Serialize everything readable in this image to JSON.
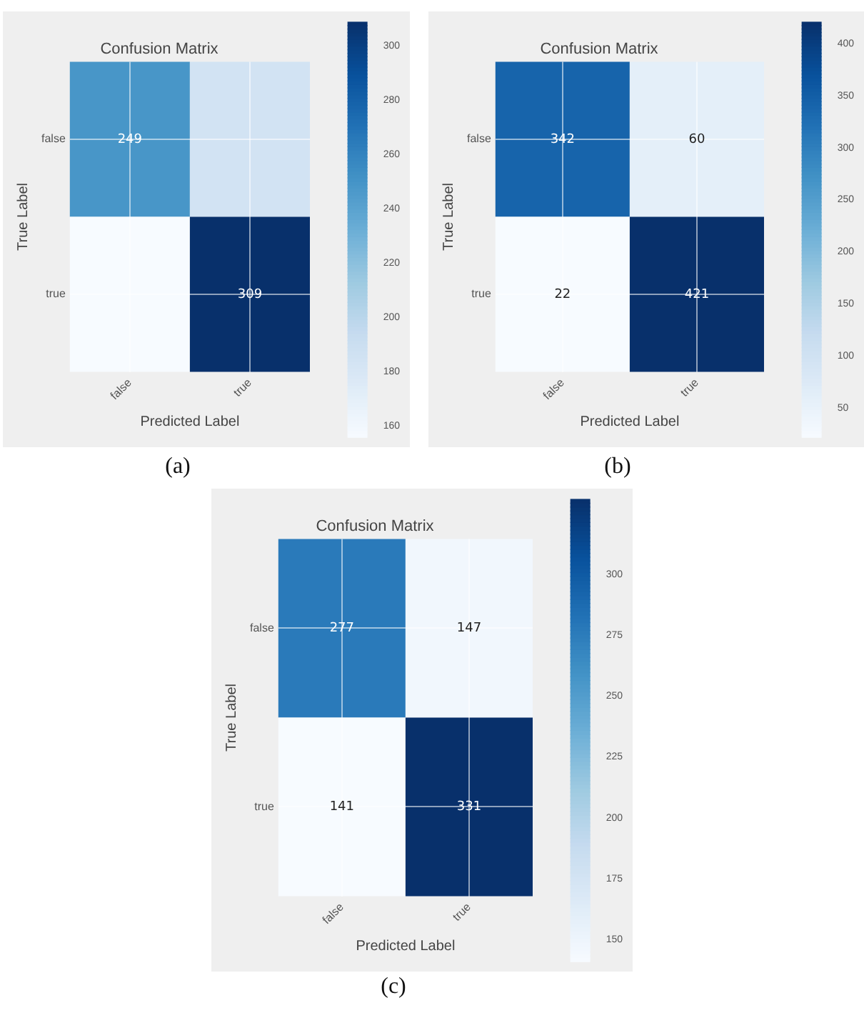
{
  "chart_data": [
    {
      "type": "heatmap",
      "title": "Confusion Matrix",
      "xlabel": "Predicted Label",
      "ylabel": "True Label",
      "categories": [
        "false",
        "true"
      ],
      "y_categories": [
        "false",
        "true"
      ],
      "cells": [
        [
          249,
          185
        ],
        [
          156,
          309
        ]
      ],
      "cell_labels": [
        [
          "249",
          null
        ],
        [
          null,
          "309"
        ]
      ],
      "clim": [
        156,
        309
      ],
      "cticks": [
        160,
        180,
        200,
        220,
        240,
        260,
        280,
        300
      ],
      "grid": true,
      "annotations": [
        "(a)"
      ]
    },
    {
      "type": "heatmap",
      "title": "Confusion Matrix",
      "xlabel": "Predicted Label",
      "ylabel": "True Label",
      "categories": [
        "false",
        "true"
      ],
      "y_categories": [
        "false",
        "true"
      ],
      "cells": [
        [
          342,
          60
        ],
        [
          22,
          421
        ]
      ],
      "clim": [
        22,
        421
      ],
      "data_labels": true,
      "cticks": [
        50,
        100,
        150,
        200,
        250,
        300,
        350,
        400
      ],
      "grid": true,
      "annotations": [
        "(b)"
      ]
    },
    {
      "type": "heatmap",
      "title": "Confusion Matrix",
      "xlabel": "Predicted Label",
      "ylabel": "True Label",
      "categories": [
        "false",
        "true"
      ],
      "y_categories": [
        "false",
        "true"
      ],
      "cells": [
        [
          277,
          147
        ],
        [
          141,
          331
        ]
      ],
      "clim": [
        141,
        331
      ],
      "data_labels": true,
      "cticks": [
        150,
        175,
        200,
        225,
        250,
        275,
        300
      ],
      "grid": true,
      "annotations": [
        "(c)"
      ]
    }
  ]
}
